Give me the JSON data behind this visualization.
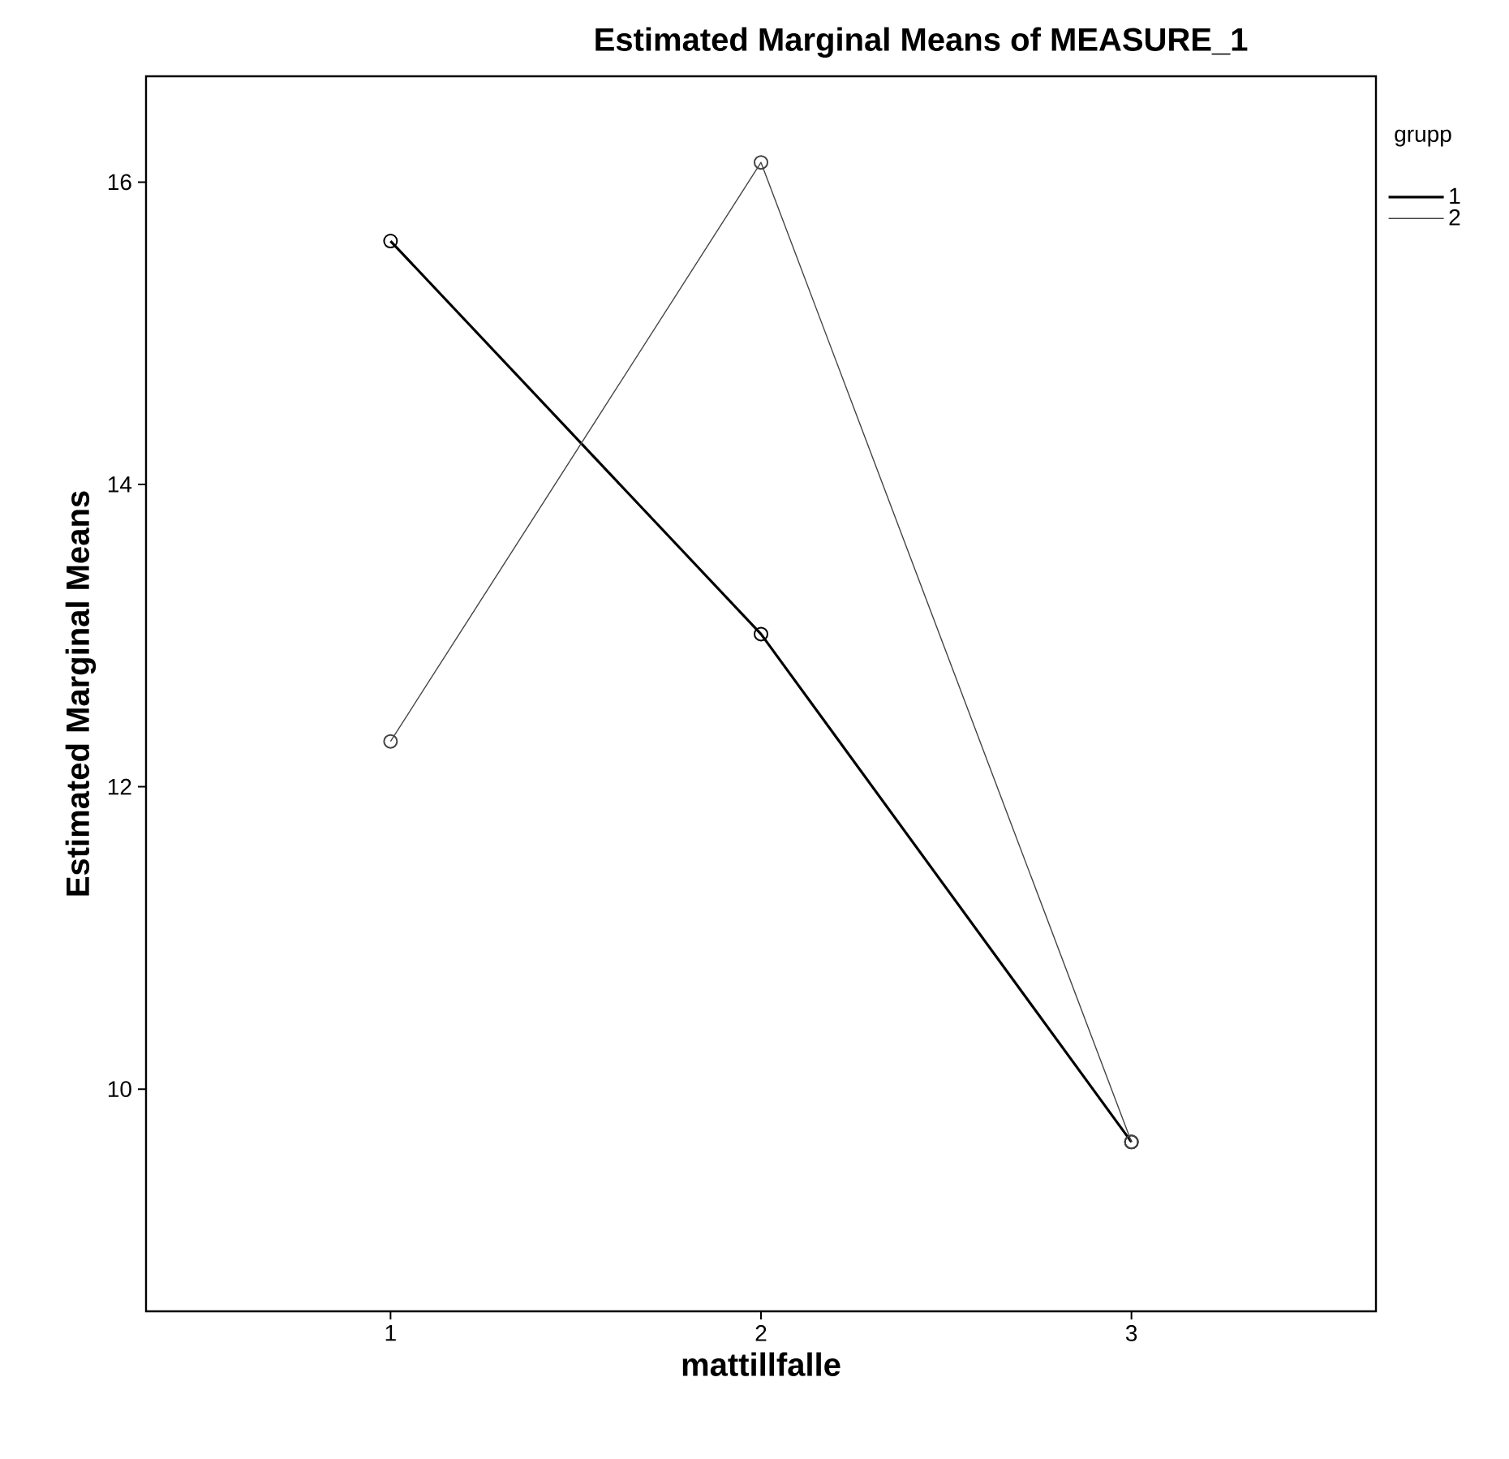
{
  "chart_data": {
    "type": "line",
    "title": "Estimated Marginal Means of MEASURE_1",
    "xlabel": "mattillfalle",
    "ylabel": "Estimated Marginal Means",
    "legend_title": "grupp",
    "x": [
      1,
      2,
      3
    ],
    "series": [
      {
        "name": "1",
        "color": "#000000",
        "values": [
          15.61,
          13.01,
          9.65
        ]
      },
      {
        "name": "2",
        "color": "#444444",
        "values": [
          12.3,
          16.13,
          9.65
        ]
      }
    ],
    "xlim": [
      0.34,
      3.66
    ],
    "xticks": [
      1,
      2,
      3
    ],
    "ylim": [
      8.53,
      16.7
    ],
    "yticks": [
      10,
      12,
      14,
      16
    ],
    "legend": "top right",
    "marker": "circle",
    "line_style": "solid",
    "grid": false
  }
}
